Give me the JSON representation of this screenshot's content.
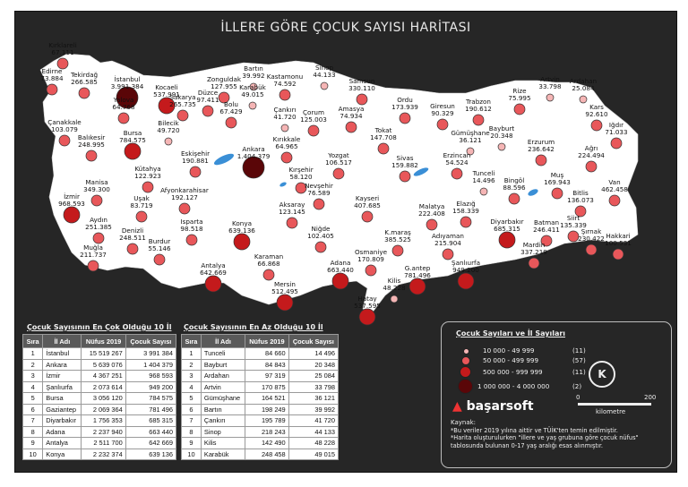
{
  "title": "İLLERE GÖRE ÇOCUK SAYISI HARİTASI",
  "colors": {
    "background": "#262626",
    "land": "#ffffff",
    "lake": "#3a8fd6",
    "class1": "#f5b5b5",
    "class2": "#e8575a",
    "class3": "#c41a1c",
    "class4": "#5a0608"
  },
  "provinces": [
    {
      "name": "Kırklareli",
      "value": "67.111",
      "cls": 2
    },
    {
      "name": "Edirne",
      "value": "73.884",
      "cls": 2
    },
    {
      "name": "Tekirdağ",
      "value": "266.585",
      "cls": 2
    },
    {
      "name": "İstanbul",
      "value": "3.991.384",
      "cls": 4
    },
    {
      "name": "Kocaeli",
      "value": "537.991",
      "cls": 3
    },
    {
      "name": "Yalova",
      "value": "64.768",
      "cls": 2
    },
    {
      "name": "Sakarya",
      "value": "265.735",
      "cls": 2
    },
    {
      "name": "Düzce",
      "value": "97.411",
      "cls": 2
    },
    {
      "name": "Zonguldak",
      "value": "127.955",
      "cls": 2
    },
    {
      "name": "Bartın",
      "value": "39.992",
      "cls": 1
    },
    {
      "name": "Karabük",
      "value": "49.015",
      "cls": 1
    },
    {
      "name": "Kastamonu",
      "value": "74.592",
      "cls": 2
    },
    {
      "name": "Sinop",
      "value": "44.133",
      "cls": 1
    },
    {
      "name": "Samsun",
      "value": "330.110",
      "cls": 2
    },
    {
      "name": "Ordu",
      "value": "173.939",
      "cls": 2
    },
    {
      "name": "Giresun",
      "value": "90.329",
      "cls": 2
    },
    {
      "name": "Trabzon",
      "value": "190.612",
      "cls": 2
    },
    {
      "name": "Rize",
      "value": "75.995",
      "cls": 2
    },
    {
      "name": "Artvin",
      "value": "33.798",
      "cls": 1
    },
    {
      "name": "Ardahan",
      "value": "25.084",
      "cls": 1
    },
    {
      "name": "Kars",
      "value": "92.610",
      "cls": 2
    },
    {
      "name": "Iğdır",
      "value": "71.033",
      "cls": 2
    },
    {
      "name": "Çanakkale",
      "value": "103.079",
      "cls": 2
    },
    {
      "name": "Balıkesir",
      "value": "248.995",
      "cls": 2
    },
    {
      "name": "Bursa",
      "value": "784.575",
      "cls": 3
    },
    {
      "name": "Bilecik",
      "value": "49.720",
      "cls": 1
    },
    {
      "name": "Bolu",
      "value": "67.429",
      "cls": 2
    },
    {
      "name": "Çankırı",
      "value": "41.720",
      "cls": 1
    },
    {
      "name": "Çorum",
      "value": "125.003",
      "cls": 2
    },
    {
      "name": "Amasya",
      "value": "74.934",
      "cls": 2
    },
    {
      "name": "Tokat",
      "value": "147.708",
      "cls": 2
    },
    {
      "name": "Gümüşhane",
      "value": "36.121",
      "cls": 1
    },
    {
      "name": "Bayburt",
      "value": "20.348",
      "cls": 1
    },
    {
      "name": "Erzurum",
      "value": "236.642",
      "cls": 2
    },
    {
      "name": "Ağrı",
      "value": "224.494",
      "cls": 2
    },
    {
      "name": "Eskişehir",
      "value": "190.881",
      "cls": 2
    },
    {
      "name": "Ankara",
      "value": "1.404.379",
      "cls": 4
    },
    {
      "name": "Kırıkkale",
      "value": "64.965",
      "cls": 2
    },
    {
      "name": "Yozgat",
      "value": "106.517",
      "cls": 2
    },
    {
      "name": "Sivas",
      "value": "159.882",
      "cls": 2
    },
    {
      "name": "Erzincan",
      "value": "54.524",
      "cls": 2
    },
    {
      "name": "Tunceli",
      "value": "14.496",
      "cls": 1
    },
    {
      "name": "Bingöl",
      "value": "88.596",
      "cls": 2
    },
    {
      "name": "Muş",
      "value": "169.943",
      "cls": 2
    },
    {
      "name": "Van",
      "value": "462.458",
      "cls": 2
    },
    {
      "name": "Bitlis",
      "value": "136.073",
      "cls": 2
    },
    {
      "name": "Manisa",
      "value": "349.300",
      "cls": 2
    },
    {
      "name": "Kütahya",
      "value": "122.923",
      "cls": 2
    },
    {
      "name": "İzmir",
      "value": "968.593",
      "cls": 3
    },
    {
      "name": "Uşak",
      "value": "83.719",
      "cls": 2
    },
    {
      "name": "Afyonkarahisar",
      "value": "192.127",
      "cls": 2
    },
    {
      "name": "Kırşehir",
      "value": "58.120",
      "cls": 2
    },
    {
      "name": "Nevşehir",
      "value": "76.589",
      "cls": 2
    },
    {
      "name": "Kayseri",
      "value": "407.685",
      "cls": 2
    },
    {
      "name": "Malatya",
      "value": "222.408",
      "cls": 2
    },
    {
      "name": "Elazığ",
      "value": "158.339",
      "cls": 2
    },
    {
      "name": "Diyarbakır",
      "value": "685.315",
      "cls": 3
    },
    {
      "name": "Batman",
      "value": "246.411",
      "cls": 2
    },
    {
      "name": "Siirt",
      "value": "135.339",
      "cls": 2
    },
    {
      "name": "Şırnak",
      "value": "230.422",
      "cls": 2
    },
    {
      "name": "Hakkari",
      "value": "100.531",
      "cls": 2
    },
    {
      "name": "Aydın",
      "value": "251.385",
      "cls": 2
    },
    {
      "name": "Denizli",
      "value": "248.511",
      "cls": 2
    },
    {
      "name": "Isparta",
      "value": "98.518",
      "cls": 2
    },
    {
      "name": "Konya",
      "value": "639.136",
      "cls": 3
    },
    {
      "name": "Aksaray",
      "value": "123.145",
      "cls": 2
    },
    {
      "name": "Niğde",
      "value": "102.405",
      "cls": 2
    },
    {
      "name": "Adıyaman",
      "value": "215.904",
      "cls": 2
    },
    {
      "name": "K.maraş",
      "value": "385.525",
      "cls": 2
    },
    {
      "name": "Şanlıurfa",
      "value": "949.200",
      "cls": 3
    },
    {
      "name": "Mardin",
      "value": "337.219",
      "cls": 2
    },
    {
      "name": "Muğla",
      "value": "211.737",
      "cls": 2
    },
    {
      "name": "Burdur",
      "value": "55.146",
      "cls": 2
    },
    {
      "name": "Antalya",
      "value": "642.669",
      "cls": 3
    },
    {
      "name": "Karaman",
      "value": "66.868",
      "cls": 2
    },
    {
      "name": "Mersin",
      "value": "512.495",
      "cls": 3
    },
    {
      "name": "Adana",
      "value": "663.440",
      "cls": 3
    },
    {
      "name": "Osmaniye",
      "value": "170.809",
      "cls": 2
    },
    {
      "name": "G.antep",
      "value": "781.496",
      "cls": 3
    },
    {
      "name": "Kilis",
      "value": "48.228",
      "cls": 1
    },
    {
      "name": "Hatay",
      "value": "537.595",
      "cls": 3
    }
  ],
  "top_table": {
    "caption": "Çocuk Sayısının En Çok Olduğu 10 İl",
    "headers": [
      "Sıra",
      "İl Adı",
      "Nüfus 2019",
      "Çocuk Sayısı"
    ],
    "rows": [
      [
        "1",
        "İstanbul",
        "15 519 267",
        "3 991 384"
      ],
      [
        "2",
        "Ankara",
        "5 639 076",
        "1 404 379"
      ],
      [
        "3",
        "İzmir",
        "4 367 251",
        "968 593"
      ],
      [
        "4",
        "Şanlıurfa",
        "2 073 614",
        "949 200"
      ],
      [
        "5",
        "Bursa",
        "3 056 120",
        "784 575"
      ],
      [
        "6",
        "Gaziantep",
        "2 069 364",
        "781 496"
      ],
      [
        "7",
        "Diyarbakır",
        "1 756 353",
        "685 315"
      ],
      [
        "8",
        "Adana",
        "2 237 940",
        "663 440"
      ],
      [
        "9",
        "Antalya",
        "2 511 700",
        "642 669"
      ],
      [
        "10",
        "Konya",
        "2 232 374",
        "639 136"
      ]
    ]
  },
  "bottom_table": {
    "caption": "Çocuk Sayısının En Az Olduğu 10 İl",
    "headers": [
      "Sıra",
      "İl Adı",
      "Nüfus 2019",
      "Çocuk Sayısı"
    ],
    "rows": [
      [
        "1",
        "Tunceli",
        "84 660",
        "14 496"
      ],
      [
        "2",
        "Bayburt",
        "84 843",
        "20 348"
      ],
      [
        "3",
        "Ardahan",
        "97 319",
        "25 084"
      ],
      [
        "4",
        "Artvin",
        "170 875",
        "33 798"
      ],
      [
        "5",
        "Gümüşhane",
        "164 521",
        "36 121"
      ],
      [
        "6",
        "Bartın",
        "198 249",
        "39 992"
      ],
      [
        "7",
        "Çankırı",
        "195 789",
        "41 720"
      ],
      [
        "8",
        "Sinop",
        "218 243",
        "44 133"
      ],
      [
        "9",
        "Kilis",
        "142 490",
        "48 228"
      ],
      [
        "10",
        "Karabük",
        "248 458",
        "49 015"
      ]
    ]
  },
  "legend": {
    "title": "Çocuk Sayıları ve İl Sayıları",
    "classes": [
      {
        "range": "10 000  -    49 999",
        "count": "(11)"
      },
      {
        "range": "50 000  -   499 999",
        "count": "(57)"
      },
      {
        "range": "500 000  -   999 999",
        "count": "(11)"
      },
      {
        "range": "1 000 000  -  4 000 000",
        "count": "(2)"
      }
    ],
    "compass_letter": "K",
    "scale_start": "0",
    "scale_end": "200",
    "scale_unit": "kilometre",
    "source": "Kaynak:",
    "notes": [
      "*Bu veriler 2019 yılına aittir ve TÜİK'ten temin edilmiştir.",
      "*Harita oluşturulurken \"illere ve yaş grubuna göre çocuk nüfus\"",
      "tablosunda bulunan 0-17 yaş aralığı esas alınmıştır."
    ],
    "brand": "başarsoft"
  }
}
